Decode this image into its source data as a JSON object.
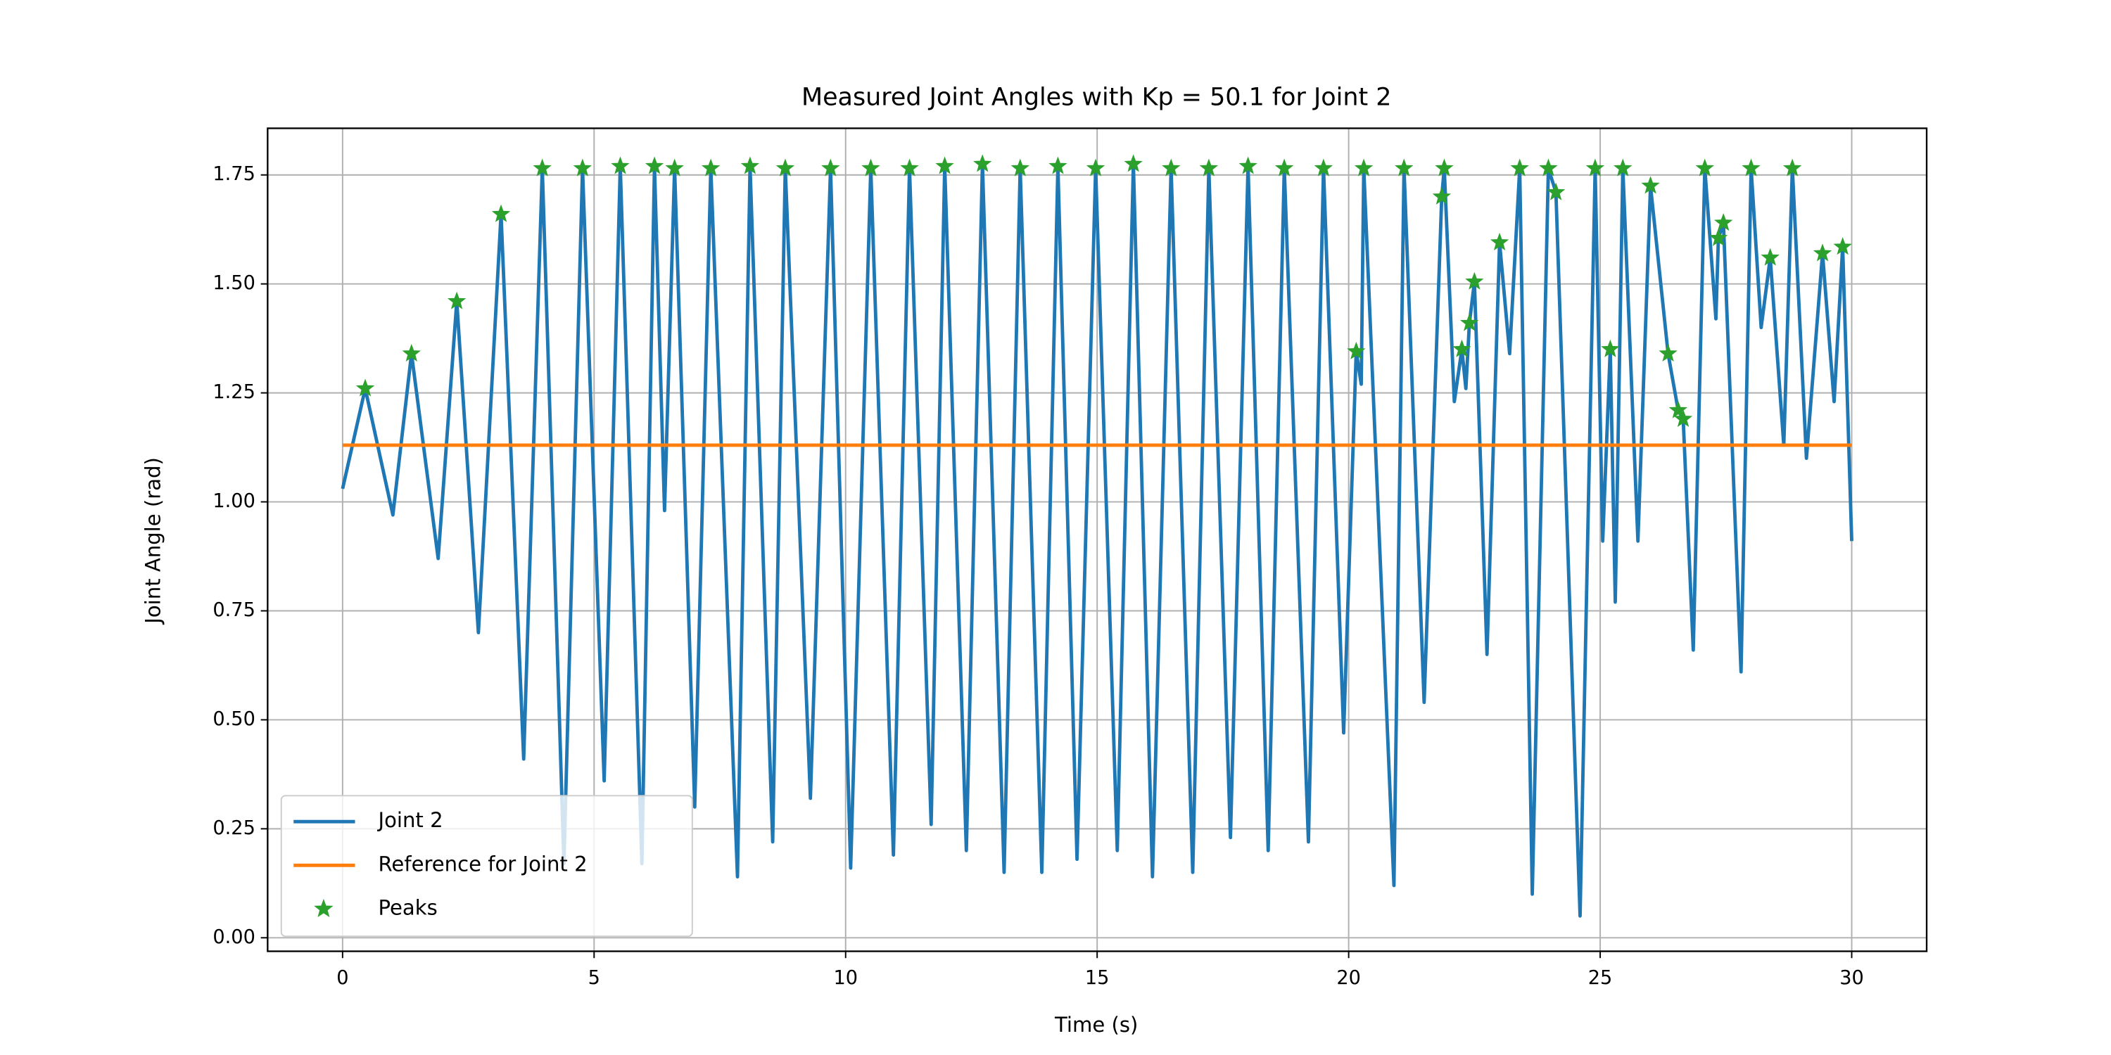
{
  "chart_data": {
    "type": "line",
    "title": "Measured Joint Angles with Kp = 50.1 for Joint 2",
    "xlabel": "Time (s)",
    "ylabel": "Joint Angle (rad)",
    "xlim": [
      -1.49,
      31.49
    ],
    "ylim": [
      -0.031,
      1.857
    ],
    "xticks": [
      0,
      5,
      10,
      15,
      20,
      25,
      30
    ],
    "yticks": [
      {
        "value": 0,
        "label": "0.00"
      },
      {
        "value": 0.25,
        "label": "0.25"
      },
      {
        "value": 0.5,
        "label": "0.50"
      },
      {
        "value": 0.75,
        "label": "0.75"
      },
      {
        "value": 1,
        "label": "1.00"
      },
      {
        "value": 1.25,
        "label": "1.25"
      },
      {
        "value": 1.5,
        "label": "1.50"
      },
      {
        "value": 1.75,
        "label": "1.75"
      }
    ],
    "grid": true,
    "legend": "lower left",
    "series": [
      {
        "name": "Joint 2",
        "color": "#1f77b4",
        "mode": "lines",
        "x": [
          0,
          0.45,
          1.0,
          1.37,
          1.9,
          2.27,
          2.7,
          3.15,
          3.6,
          3.97,
          4.4,
          4.77,
          5.2,
          5.52,
          5.95,
          6.2,
          6.4,
          6.6,
          7.0,
          7.32,
          7.85,
          8.1,
          8.55,
          8.8,
          9.3,
          9.7,
          10.1,
          10.5,
          10.95,
          11.27,
          11.7,
          11.97,
          12.4,
          12.72,
          13.15,
          13.47,
          13.9,
          14.22,
          14.6,
          14.97,
          15.4,
          15.72,
          16.1,
          16.47,
          16.9,
          17.22,
          17.65,
          18.0,
          18.4,
          18.72,
          19.2,
          19.5,
          19.9,
          20.15,
          20.25,
          20.3,
          20.9,
          21.1,
          21.5,
          21.85,
          21.9,
          22.1,
          22.25,
          22.33,
          22.4,
          22.5,
          22.75,
          23.0,
          23.2,
          23.4,
          23.65,
          23.97,
          24.12,
          24.6,
          24.9,
          25.05,
          25.2,
          25.3,
          25.45,
          25.75,
          26.0,
          26.35,
          26.55,
          26.65,
          26.85,
          27.08,
          27.3,
          27.35,
          27.45,
          27.8,
          28.0,
          28.2,
          28.38,
          28.65,
          28.82,
          29.1,
          29.42,
          29.65,
          29.82,
          30
        ],
        "values": [
          1.03,
          1.26,
          0.97,
          1.34,
          0.87,
          1.46,
          0.7,
          1.66,
          0.41,
          1.765,
          0.17,
          1.765,
          0.36,
          1.77,
          0.17,
          1.77,
          0.98,
          1.765,
          0.3,
          1.765,
          0.14,
          1.77,
          0.22,
          1.765,
          0.32,
          1.765,
          0.16,
          1.765,
          0.19,
          1.765,
          0.26,
          1.77,
          0.2,
          1.775,
          0.15,
          1.765,
          0.15,
          1.77,
          0.18,
          1.765,
          0.2,
          1.775,
          0.14,
          1.765,
          0.15,
          1.765,
          0.23,
          1.77,
          0.2,
          1.765,
          0.22,
          1.765,
          0.47,
          1.345,
          1.27,
          1.765,
          0.12,
          1.765,
          0.54,
          1.7,
          1.765,
          1.23,
          1.35,
          1.26,
          1.41,
          1.505,
          0.65,
          1.595,
          1.34,
          1.765,
          0.1,
          1.765,
          1.71,
          0.05,
          1.765,
          0.91,
          1.35,
          0.77,
          1.765,
          0.91,
          1.725,
          1.34,
          1.21,
          1.19,
          0.66,
          1.765,
          1.42,
          1.605,
          1.64,
          0.61,
          1.765,
          1.4,
          1.56,
          1.13,
          1.765,
          1.1,
          1.57,
          1.23,
          1.585,
          0.91
        ]
      },
      {
        "name": "Reference for Joint 2",
        "color": "#ff7f0e",
        "mode": "lines",
        "x": [
          0,
          30
        ],
        "values": [
          1.13,
          1.13
        ]
      },
      {
        "name": "Peaks",
        "color": "#2ca02c",
        "mode": "markers",
        "marker": "star",
        "x": [
          0.45,
          1.37,
          2.27,
          3.15,
          3.97,
          4.77,
          5.52,
          6.2,
          6.6,
          7.32,
          8.1,
          8.8,
          9.7,
          10.5,
          11.27,
          11.97,
          12.72,
          13.47,
          14.22,
          14.97,
          15.72,
          16.47,
          17.22,
          18.0,
          18.72,
          19.5,
          20.15,
          20.3,
          21.1,
          21.85,
          21.9,
          22.25,
          22.4,
          22.5,
          23.0,
          23.4,
          23.97,
          24.12,
          24.9,
          25.2,
          25.45,
          26.0,
          26.35,
          26.55,
          26.65,
          27.08,
          27.35,
          27.45,
          28.0,
          28.38,
          28.82,
          29.42,
          29.82
        ],
        "values": [
          1.26,
          1.34,
          1.46,
          1.66,
          1.765,
          1.765,
          1.77,
          1.77,
          1.765,
          1.765,
          1.77,
          1.765,
          1.765,
          1.765,
          1.765,
          1.77,
          1.775,
          1.765,
          1.77,
          1.765,
          1.775,
          1.765,
          1.765,
          1.77,
          1.765,
          1.765,
          1.345,
          1.765,
          1.765,
          1.7,
          1.765,
          1.35,
          1.41,
          1.505,
          1.595,
          1.765,
          1.765,
          1.71,
          1.765,
          1.35,
          1.765,
          1.725,
          1.34,
          1.21,
          1.19,
          1.765,
          1.605,
          1.64,
          1.765,
          1.56,
          1.765,
          1.57,
          1.585
        ]
      }
    ]
  }
}
